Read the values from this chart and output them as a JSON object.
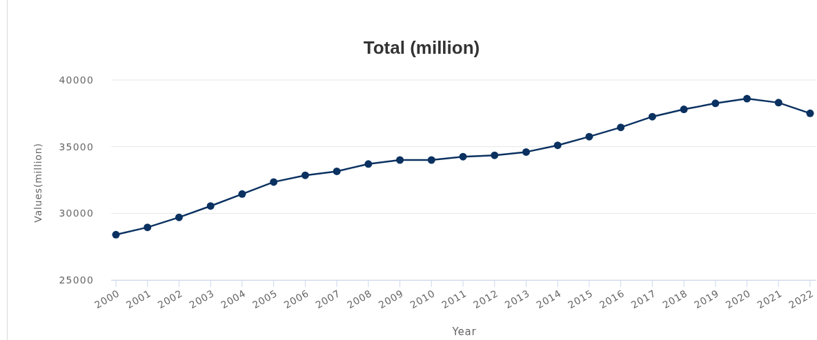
{
  "chart_data": {
    "type": "line",
    "title": "Total (million)",
    "xlabel": "Year",
    "ylabel": "Values(million)",
    "categories": [
      "2000",
      "2001",
      "2002",
      "2003",
      "2004",
      "2005",
      "2006",
      "2007",
      "2008",
      "2009",
      "2010",
      "2011",
      "2012",
      "2013",
      "2014",
      "2015",
      "2016",
      "2017",
      "2018",
      "2019",
      "2020",
      "2021",
      "2022"
    ],
    "series": [
      {
        "color": "#0a3160",
        "values": [
          28400,
          28950,
          29700,
          30550,
          31450,
          32350,
          32850,
          33150,
          33700,
          34000,
          34000,
          34250,
          34350,
          34600,
          35100,
          35750,
          36450,
          37250,
          37800,
          38250,
          38600,
          38300,
          37500
        ]
      }
    ],
    "ylim": [
      25000,
      40000
    ],
    "yticks": [
      25000,
      30000,
      35000,
      40000
    ],
    "grid": "y",
    "marker": "circle",
    "line_style": "solid"
  }
}
